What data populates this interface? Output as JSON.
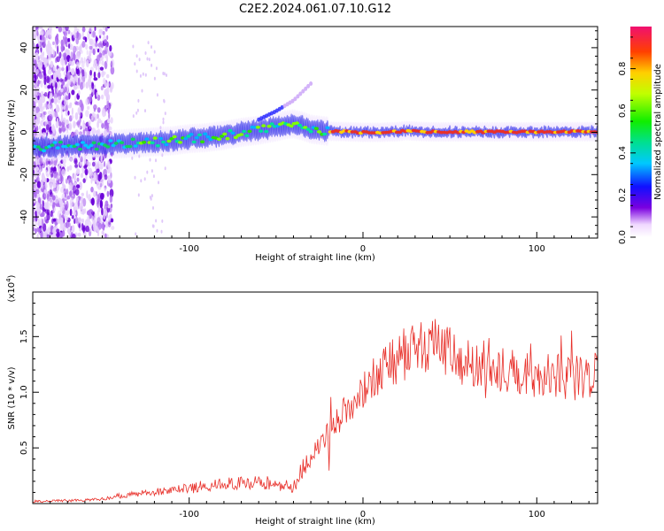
{
  "title": "C2E2.2024.061.07.10.G12",
  "colors": {
    "snr_line": "#e8302a",
    "ridge": "#e8302a",
    "frame": "#000000",
    "scatter": "#7a00e0"
  },
  "chart_data": [
    {
      "type": "heatmap",
      "name": "spectrogram",
      "xlabel": "Height of straight line (km)",
      "ylabel": "Frequency (Hz)",
      "xlim": [
        -190,
        135
      ],
      "ylim": [
        -50,
        50
      ],
      "xticks": [
        -100,
        0,
        100
      ],
      "yticks": [
        -40,
        -20,
        0,
        20,
        40
      ],
      "ridge": {
        "x": [
          -190,
          -170,
          -150,
          -140,
          -130,
          -120,
          -110,
          -100,
          -90,
          -80,
          -70,
          -60,
          -50,
          -45,
          -40,
          -35,
          -30,
          -25,
          -20,
          -10,
          0,
          10,
          20,
          25,
          30,
          40,
          60,
          80,
          100,
          120,
          135
        ],
        "y": [
          -7,
          -6.5,
          -6,
          -5.5,
          -5,
          -4.5,
          -4,
          -3,
          -2.5,
          -1.5,
          0,
          1,
          2.5,
          3.5,
          4,
          3,
          1.5,
          1,
          0.5,
          0.3,
          0,
          0,
          0.3,
          0.8,
          0.5,
          0.2,
          0.2,
          0.2,
          0.2,
          0.3,
          0.3
        ]
      },
      "branch": {
        "x": [
          -60,
          -50,
          -40,
          -30
        ],
        "y": [
          6,
          10,
          15,
          23
        ]
      },
      "colorbar": {
        "label": "Normalized spectral amplitude",
        "range": [
          0,
          1
        ],
        "ticks": [
          "0.0",
          "0.2",
          "0.4",
          "0.6",
          "0.8"
        ]
      }
    },
    {
      "type": "line",
      "name": "snr",
      "xlabel": "Height of straight line (km)",
      "ylabel": "SNR (10 * v/v)",
      "yscale_label": "(x10",
      "yscale_exp": "4",
      "xlim": [
        -190,
        135
      ],
      "ylim": [
        0,
        1.9
      ],
      "xticks": [
        -100,
        0,
        100
      ],
      "ytick_labels": [
        "0.5",
        "1.0",
        "1.5"
      ],
      "envelope": {
        "x": [
          -190,
          -160,
          -150,
          -140,
          -120,
          -100,
          -80,
          -60,
          -50,
          -40,
          -30,
          -20,
          -10,
          0,
          10,
          20,
          30,
          40,
          50,
          60,
          70,
          80,
          100,
          120,
          135
        ],
        "y": [
          0.02,
          0.03,
          0.04,
          0.07,
          0.1,
          0.14,
          0.17,
          0.2,
          0.17,
          0.15,
          0.45,
          0.65,
          0.85,
          1.0,
          1.15,
          1.3,
          1.4,
          1.42,
          1.35,
          1.25,
          1.3,
          1.2,
          1.15,
          1.12,
          1.15
        ]
      }
    }
  ]
}
